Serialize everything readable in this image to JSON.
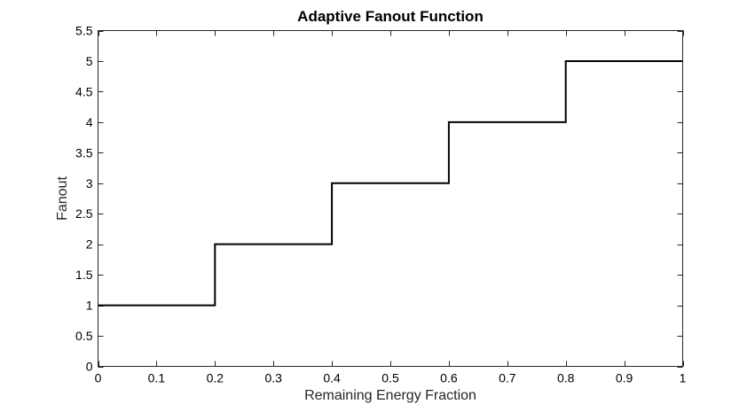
{
  "chart_data": {
    "type": "line",
    "title": "Adaptive Fanout Function",
    "xlabel": "Remaining Energy Fraction",
    "ylabel": "Fanout",
    "xlim": [
      0,
      1
    ],
    "ylim": [
      0,
      5.5
    ],
    "x_ticks": [
      0,
      0.1,
      0.2,
      0.3,
      0.4,
      0.5,
      0.6,
      0.7,
      0.8,
      0.9,
      1
    ],
    "x_tick_labels": [
      "0",
      "0.1",
      "0.2",
      "0.3",
      "0.4",
      "0.5",
      "0.6",
      "0.7",
      "0.8",
      "0.9",
      "1"
    ],
    "y_ticks": [
      0,
      0.5,
      1,
      1.5,
      2,
      2.5,
      3,
      3.5,
      4,
      4.5,
      5,
      5.5
    ],
    "y_tick_labels": [
      "0",
      "0.5",
      "1",
      "1.5",
      "2",
      "2.5",
      "3",
      "3.5",
      "4",
      "4.5",
      "5",
      "5.5"
    ],
    "grid": false,
    "series": [
      {
        "x": [
          0,
          0.2,
          0.2,
          0.4,
          0.4,
          0.6,
          0.6,
          0.8,
          0.8,
          1
        ],
        "y": [
          1,
          1,
          2,
          2,
          3,
          3,
          4,
          4,
          5,
          5
        ],
        "color": "#000000"
      }
    ]
  }
}
